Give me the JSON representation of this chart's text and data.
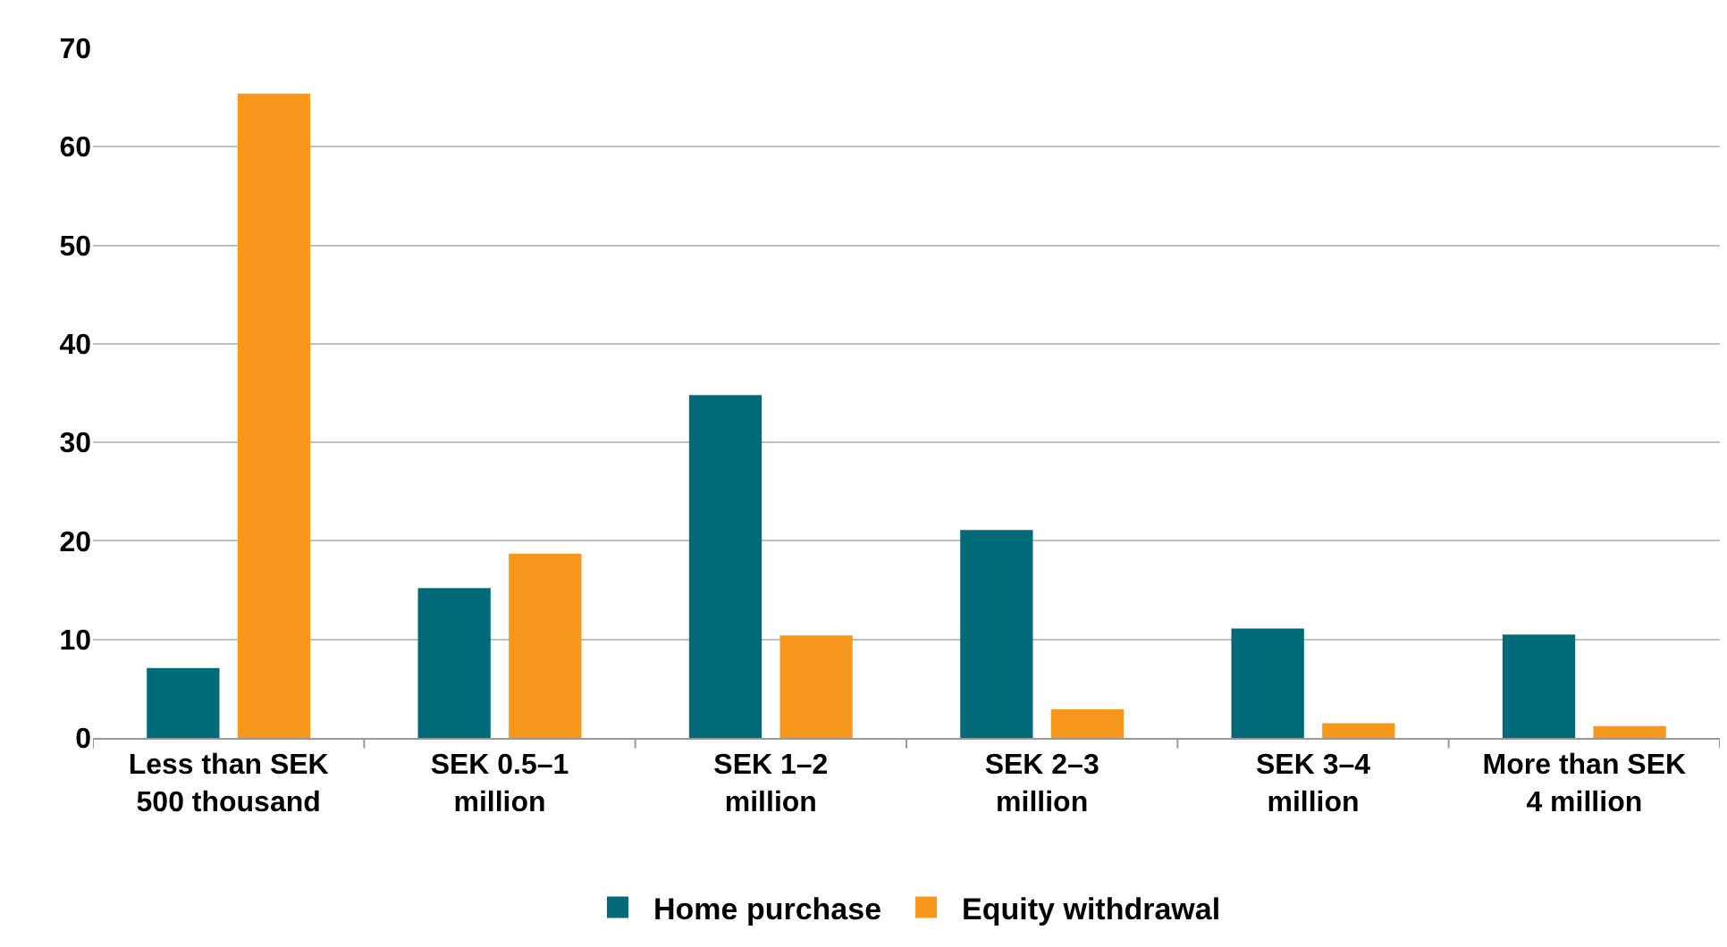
{
  "chart_data": {
    "type": "bar",
    "categories": [
      "Less than SEK 500 thousand",
      "SEK 0.5–1 million",
      "SEK 1–2 million",
      "SEK 2–3 million",
      "SEK 3–4 million",
      "More than SEK 4 million"
    ],
    "series": [
      {
        "name": "Home purchase",
        "color": "#006a78",
        "values": [
          7.1,
          15.2,
          34.8,
          21.1,
          11.1,
          10.5
        ]
      },
      {
        "name": "Equity withdrawal",
        "color": "#f7981d",
        "values": [
          65.4,
          18.7,
          10.4,
          2.9,
          1.5,
          1.2
        ]
      }
    ],
    "ylim": [
      0,
      70
    ],
    "yticks": [
      0,
      10,
      20,
      30,
      40,
      50,
      60,
      70
    ],
    "grid": "y",
    "legend": "bottom"
  }
}
